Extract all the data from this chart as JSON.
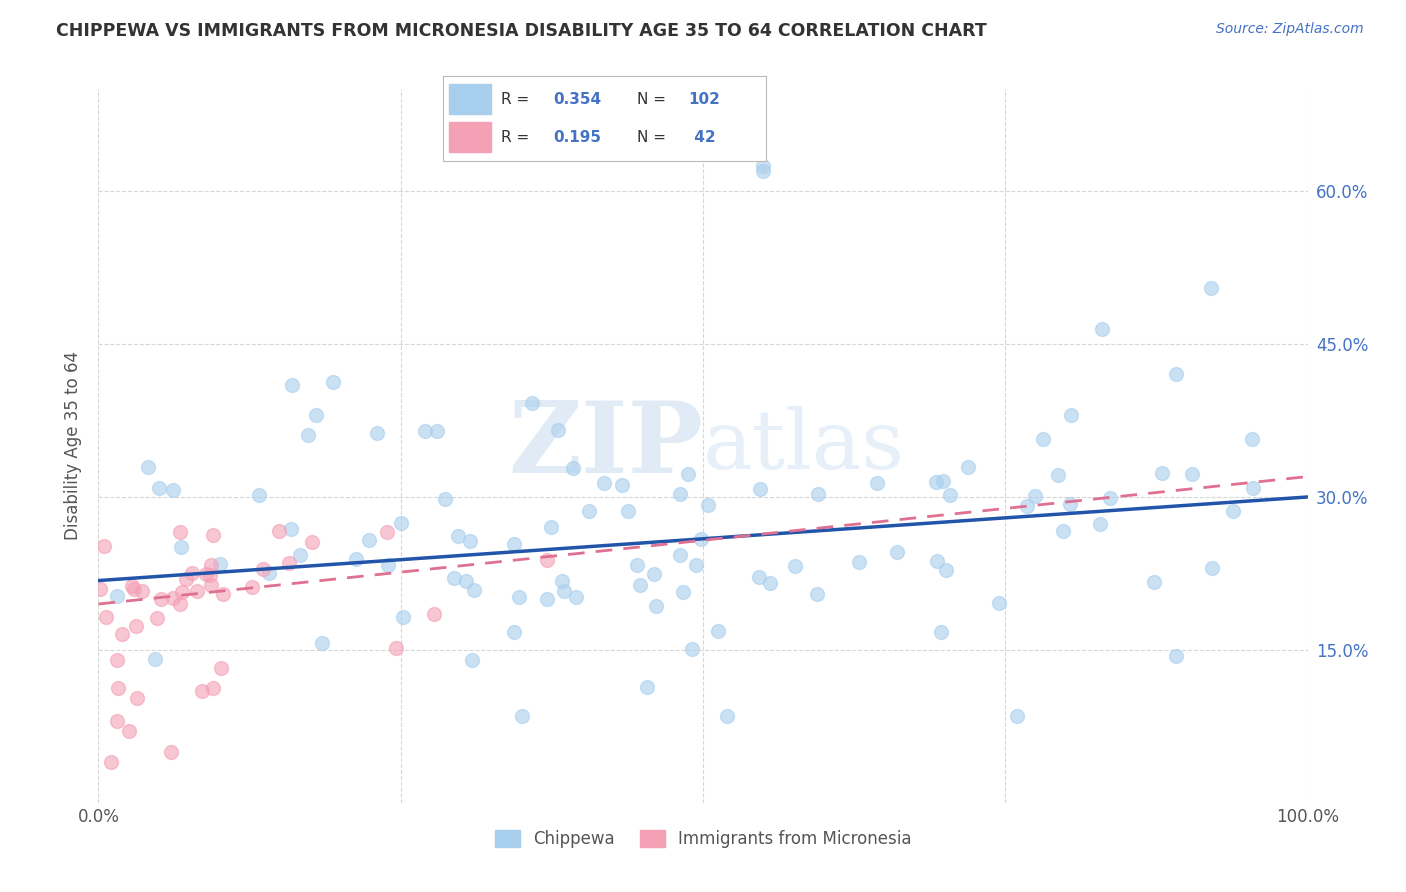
{
  "title": "CHIPPEWA VS IMMIGRANTS FROM MICRONESIA DISABILITY AGE 35 TO 64 CORRELATION CHART",
  "source_text": "Source: ZipAtlas.com",
  "ylabel": "Disability Age 35 to 64",
  "xlim": [
    0,
    1.0
  ],
  "ylim": [
    0.0,
    0.7
  ],
  "yticks": [
    0.15,
    0.3,
    0.45,
    0.6
  ],
  "yticklabels": [
    "15.0%",
    "30.0%",
    "45.0%",
    "60.0%"
  ],
  "watermark_text": "ZIPatlas",
  "color_chippewa": "#A8CEED",
  "color_micronesia": "#F4A0B5",
  "color_line_chippewa": "#2255AA",
  "color_line_micronesia": "#E07090",
  "background_color": "#FFFFFF",
  "grid_color": "#CCCCCC",
  "title_color": "#333333",
  "label_color": "#555555",
  "tick_color": "#4472C4",
  "chip_line_x0": 0.0,
  "chip_line_x1": 1.0,
  "chip_line_y0": 0.218,
  "chip_line_y1": 0.3,
  "micro_line_x0": 0.0,
  "micro_line_x1": 1.0,
  "micro_line_y0": 0.195,
  "micro_line_y1": 0.32
}
